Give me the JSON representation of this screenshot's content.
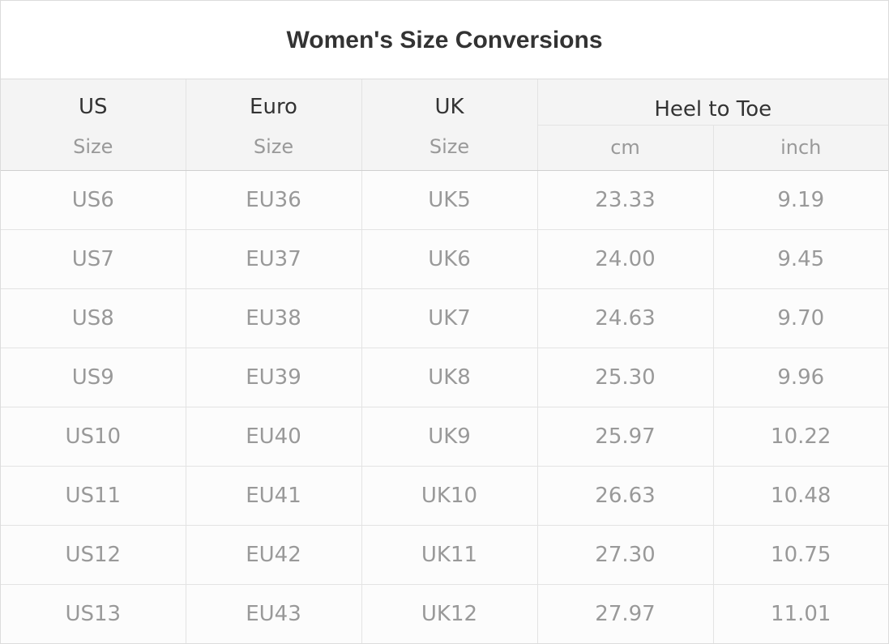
{
  "title": "Women's Size Conversions",
  "headers": {
    "us": {
      "main": "US",
      "sub": "Size"
    },
    "euro": {
      "main": "Euro",
      "sub": "Size"
    },
    "uk": {
      "main": "UK",
      "sub": "Size"
    },
    "heel_to_toe": {
      "main": "Heel to Toe",
      "cm": "cm",
      "inch": "inch"
    }
  },
  "rows": [
    {
      "us": "US6",
      "eu": "EU36",
      "uk": "UK5",
      "cm": "23.33",
      "inch": "9.19"
    },
    {
      "us": "US7",
      "eu": "EU37",
      "uk": "UK6",
      "cm": "24.00",
      "inch": "9.45"
    },
    {
      "us": "US8",
      "eu": "EU38",
      "uk": "UK7",
      "cm": "24.63",
      "inch": "9.70"
    },
    {
      "us": "US9",
      "eu": "EU39",
      "uk": "UK8",
      "cm": "25.30",
      "inch": "9.96"
    },
    {
      "us": "US10",
      "eu": "EU40",
      "uk": "UK9",
      "cm": "25.97",
      "inch": "10.22"
    },
    {
      "us": "US11",
      "eu": "EU41",
      "uk": "UK10",
      "cm": "26.63",
      "inch": "10.48"
    },
    {
      "us": "US12",
      "eu": "EU42",
      "uk": "UK11",
      "cm": "27.30",
      "inch": "10.75"
    },
    {
      "us": "US13",
      "eu": "EU43",
      "uk": "UK12",
      "cm": "27.97",
      "inch": "11.01"
    }
  ]
}
